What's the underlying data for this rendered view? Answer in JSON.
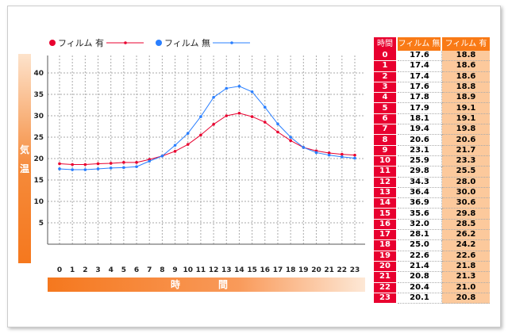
{
  "chart_data": {
    "type": "line",
    "title": "",
    "xlabel": "時　間",
    "ylabel": "気温",
    "x": [
      0,
      1,
      2,
      3,
      4,
      5,
      6,
      7,
      8,
      9,
      10,
      11,
      12,
      13,
      14,
      15,
      16,
      17,
      18,
      19,
      20,
      21,
      22,
      23
    ],
    "ylim": [
      0,
      40
    ],
    "yticks": [
      5,
      10,
      15,
      20,
      25,
      30,
      35,
      40
    ],
    "grid": true,
    "legend_placement": "top-left",
    "series": [
      {
        "name": "フィルム 有",
        "color": "#e8002f",
        "values": [
          18.8,
          18.6,
          18.6,
          18.8,
          18.9,
          19.1,
          19.1,
          19.8,
          20.6,
          21.7,
          23.3,
          25.5,
          28.0,
          30.0,
          30.6,
          29.8,
          28.5,
          26.2,
          24.2,
          22.6,
          21.8,
          21.3,
          21.0,
          20.8
        ]
      },
      {
        "name": "フィルム 無",
        "color": "#2a7fff",
        "values": [
          17.6,
          17.4,
          17.4,
          17.6,
          17.8,
          17.9,
          18.1,
          19.4,
          20.6,
          23.1,
          25.9,
          29.8,
          34.3,
          36.4,
          36.9,
          35.6,
          32.0,
          28.1,
          25.0,
          22.6,
          21.4,
          20.8,
          20.4,
          20.1
        ]
      }
    ]
  },
  "table": {
    "headers": [
      "時間",
      "フィルム 無",
      "フィルム 有"
    ]
  }
}
